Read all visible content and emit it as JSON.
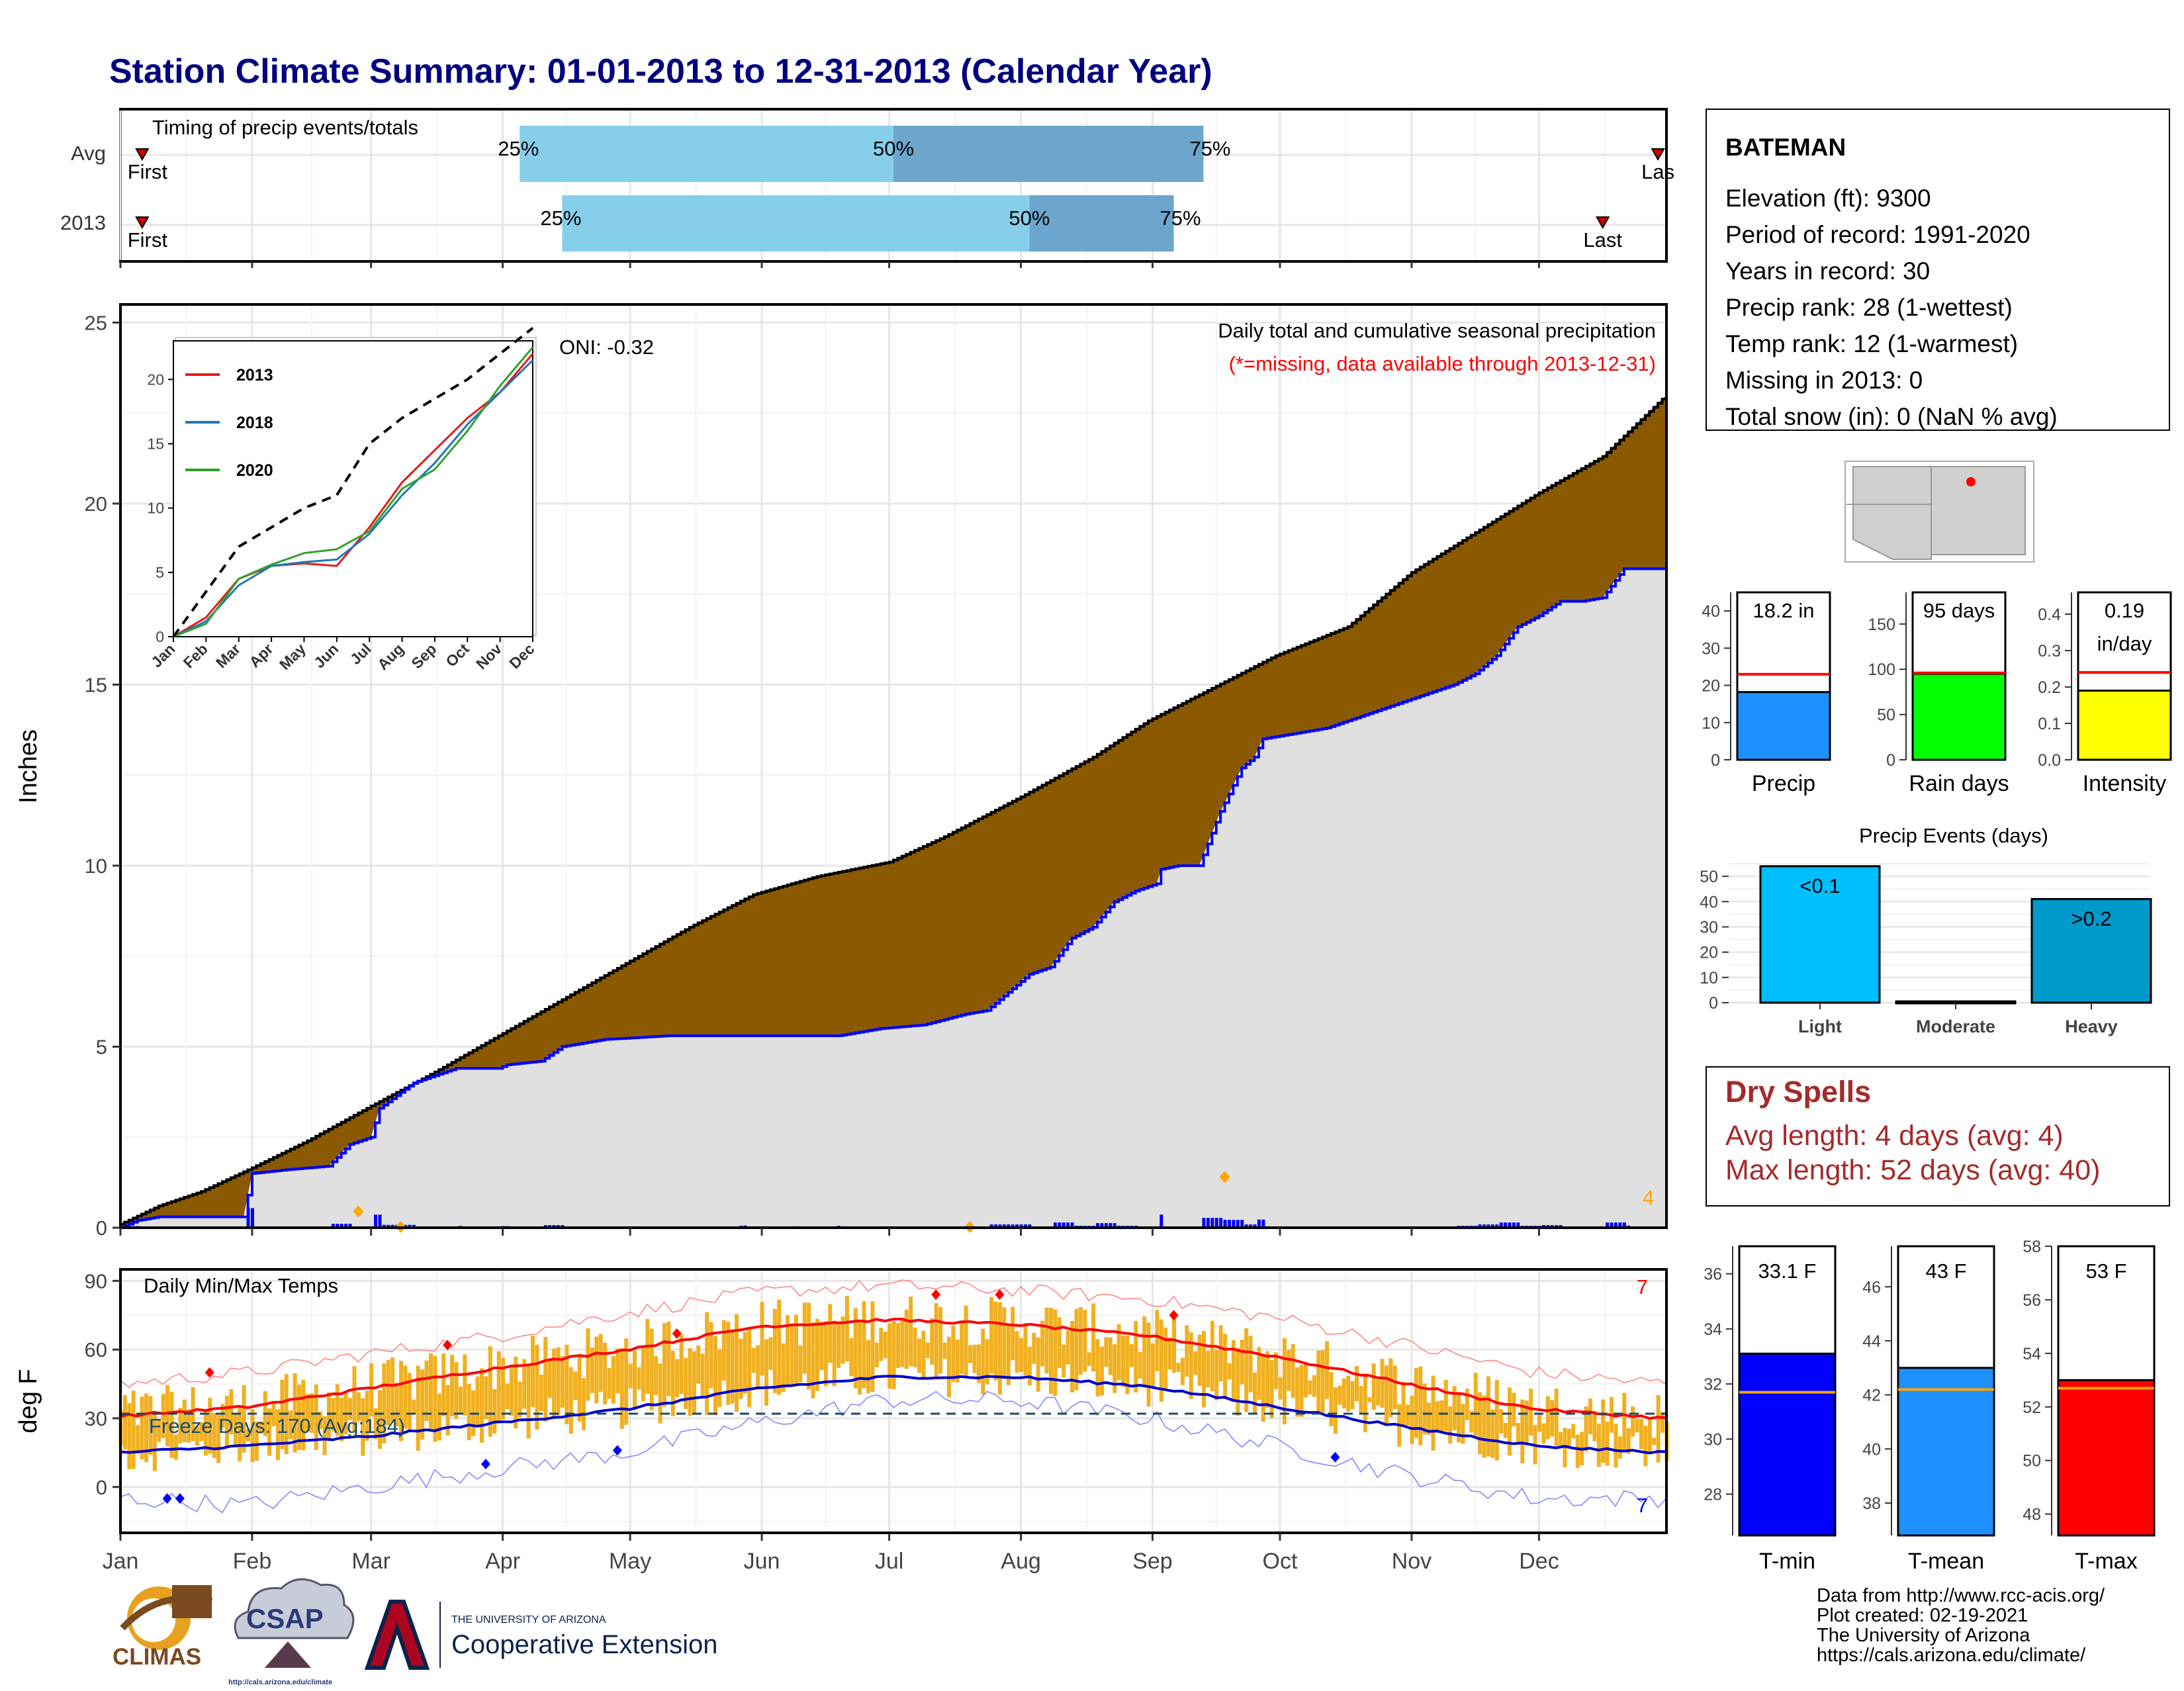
{
  "page": {
    "title": "Station Climate Summary: 01-01-2013 to 12-31-2013 (Calendar Year)",
    "colors": {
      "title": "#000080",
      "precip_fill": "#8B5A00",
      "ytd_fill": "#E0E0E0",
      "line_blue": "#0000FF",
      "temp_bar": "#F0B020",
      "tmax_line": "#FF0000",
      "tmin_line": "#0000CC"
    }
  },
  "months": [
    "Jan",
    "Feb",
    "Mar",
    "Apr",
    "May",
    "Jun",
    "Jul",
    "Aug",
    "Sep",
    "Oct",
    "Nov",
    "Dec"
  ],
  "timing_panel": {
    "title": "Timing of precip events/totals",
    "rows": [
      {
        "label": "Avg",
        "first": "First",
        "last": "Las",
        "q25": "25%",
        "q50": "50%",
        "q75": "75%",
        "p25_day": 95,
        "p50_day": 183,
        "p75_day": 256,
        "first_day": 3,
        "last_day": 363
      },
      {
        "label": "2013",
        "first": "First",
        "last": "Last",
        "q25": "25%",
        "q50": "50%",
        "q75": "75%",
        "p25_day": 105,
        "p50_day": 215,
        "p75_day": 249,
        "first_day": 3,
        "last_day": 350
      }
    ]
  },
  "precip_panel": {
    "title": "Daily total and cumulative seasonal precipitation",
    "subtitle": "(*=missing, data available through 2013-12-31)",
    "ylabel": "Inches",
    "oni": "ONI: -0.32",
    "count": "4",
    "ylim": [
      0,
      25
    ],
    "yticks": [
      "0",
      "5",
      "10",
      "15",
      "20",
      "25"
    ]
  },
  "chart_data": [
    {
      "type": "area",
      "x_unit": "day of year",
      "ylim": [
        0,
        25
      ],
      "series": [
        {
          "kind": "cumulative average precipitation",
          "x": [
            1,
            10,
            20,
            31,
            45,
            59,
            75,
            90,
            105,
            120,
            135,
            150,
            165,
            182,
            195,
            213,
            230,
            243,
            258,
            273,
            290,
            305,
            320,
            335,
            350,
            365
          ],
          "values": [
            0.1,
            0.6,
            1.0,
            1.6,
            2.4,
            3.3,
            4.3,
            5.3,
            6.3,
            7.3,
            8.3,
            9.2,
            9.7,
            10.1,
            10.8,
            11.9,
            13.0,
            14.0,
            14.9,
            15.8,
            16.6,
            18.1,
            19.2,
            20.3,
            21.3,
            23.0
          ]
        },
        {
          "kind": "cumulative 2013 precipitation",
          "x": [
            1,
            5,
            10,
            20,
            30,
            32,
            40,
            50,
            55,
            60,
            62,
            70,
            80,
            90,
            92,
            100,
            105,
            115,
            130,
            150,
            165,
            170,
            180,
            190,
            200,
            205,
            210,
            215,
            220,
            225,
            230,
            235,
            240,
            245,
            246,
            250,
            255,
            260,
            265,
            268,
            270,
            275,
            280,
            285,
            290,
            295,
            300,
            305,
            310,
            315,
            320,
            325,
            330,
            335,
            340,
            345,
            350,
            355,
            365
          ],
          "values": [
            0.0,
            0.2,
            0.3,
            0.3,
            0.3,
            1.5,
            1.6,
            1.7,
            2.3,
            2.5,
            3.3,
            4.0,
            4.4,
            4.4,
            4.5,
            4.6,
            5.0,
            5.2,
            5.3,
            5.3,
            5.3,
            5.3,
            5.5,
            5.6,
            5.9,
            6.0,
            6.5,
            7.0,
            7.2,
            8.0,
            8.3,
            9.0,
            9.3,
            9.5,
            9.9,
            10.0,
            10.0,
            11.5,
            12.7,
            13.0,
            13.5,
            13.6,
            13.7,
            13.8,
            14.0,
            14.2,
            14.4,
            14.6,
            14.8,
            15.0,
            15.3,
            15.8,
            16.6,
            16.9,
            17.3,
            17.3,
            17.4,
            18.2,
            18.2
          ]
        }
      ]
    },
    {
      "type": "line",
      "months": [
        "Jan",
        "Feb",
        "Mar",
        "Apr",
        "May",
        "Jun",
        "Jul",
        "Aug",
        "Sep",
        "Oct",
        "Nov",
        "Dec"
      ],
      "ylim": [
        0,
        23
      ],
      "yticks": [
        "0",
        "5",
        "10",
        "15",
        "20"
      ],
      "series": [
        {
          "name": "2013",
          "color": "#E31A1C",
          "values": [
            0,
            1.5,
            4.5,
            5.5,
            5.7,
            5.5,
            8.5,
            12,
            14.5,
            17,
            19,
            22
          ]
        },
        {
          "name": "2018",
          "color": "#1F78B4",
          "values": [
            0,
            1.2,
            4.0,
            5.5,
            5.8,
            6.0,
            8.0,
            11,
            13.5,
            16.5,
            19,
            21.5
          ]
        },
        {
          "name": "2020",
          "color": "#33A02C",
          "values": [
            0,
            1.0,
            4.5,
            5.6,
            6.5,
            6.8,
            8.2,
            11.5,
            13,
            16,
            19.5,
            22.5
          ]
        },
        {
          "name": "",
          "color": "#000000",
          "dashed": true,
          "values": [
            0,
            3.5,
            7.0,
            8.5,
            10,
            11,
            15,
            17,
            18.5,
            20,
            22,
            24
          ]
        }
      ]
    },
    {
      "type": "line",
      "x_unit": "day of year",
      "ylim": [
        -20,
        95
      ],
      "yticks": [
        "0",
        "30",
        "60",
        "90"
      ],
      "series": [
        {
          "kind": "average max temperature",
          "color": "#FF0000",
          "x": [
            1,
            31,
            59,
            90,
            120,
            151,
            181,
            212,
            243,
            273,
            304,
            334,
            365
          ],
          "values": [
            31,
            35,
            43,
            52,
            60,
            70,
            73,
            71,
            66,
            57,
            45,
            34,
            30
          ]
        },
        {
          "kind": "average min temperature",
          "color": "#0000CC",
          "x": [
            1,
            31,
            59,
            90,
            120,
            151,
            181,
            212,
            243,
            273,
            304,
            334,
            365
          ],
          "values": [
            15,
            18,
            22,
            28,
            34,
            43,
            48,
            48,
            44,
            35,
            26,
            18,
            15
          ]
        },
        {
          "kind": "record max temperature",
          "color": "#FF8080",
          "x": [
            1,
            31,
            59,
            90,
            120,
            151,
            181,
            212,
            243,
            273,
            304,
            334,
            365
          ],
          "values": [
            45,
            50,
            58,
            66,
            76,
            85,
            88,
            86,
            82,
            74,
            62,
            50,
            45
          ]
        },
        {
          "kind": "record min temperature",
          "color": "#8080FF",
          "x": [
            1,
            31,
            59,
            90,
            120,
            151,
            181,
            212,
            243,
            273,
            304,
            334,
            365
          ],
          "values": [
            -5,
            -8,
            0,
            8,
            15,
            28,
            38,
            38,
            30,
            18,
            5,
            -5,
            -5
          ]
        }
      ]
    },
    {
      "type": "bar",
      "title": "Precip Events (days)",
      "categories": [
        "Light",
        "Moderate",
        "Heavy"
      ],
      "labels": [
        "<0.1",
        "",
        ">0.2"
      ],
      "values": [
        54,
        0,
        41
      ],
      "colors": [
        "#00BFFF",
        "#00BFFF",
        "#0099CC"
      ],
      "ylim": [
        0,
        55
      ],
      "yticks": [
        "0",
        "10",
        "20",
        "30",
        "40",
        "50"
      ]
    }
  ],
  "temp_panel": {
    "title": "Daily Min/Max Temps",
    "ylabel": "deg F",
    "freeze": "Freeze Days: 170 (Avg:184)",
    "freeze_line": 32,
    "count_max": "7",
    "count_min": "7"
  },
  "station": {
    "name": "BATEMAN",
    "lines": [
      "Elevation (ft): 9300",
      "Period of record: 1991-2020",
      "Years in record: 30",
      "Precip rank: 28 (1-wettest)",
      "Temp rank: 12 (1-warmest)",
      "Missing in 2013: 0",
      "Total snow (in): 0 (NaN % avg)"
    ]
  },
  "minibars": [
    {
      "label": "Precip",
      "value_text": "18.2 in",
      "value": 18.2,
      "avg": 23,
      "ylim": [
        0,
        45
      ],
      "ticks": [
        "0",
        "10",
        "20",
        "30",
        "40"
      ],
      "tickv": [
        0,
        10,
        20,
        30,
        40
      ],
      "color": "#1E90FF",
      "avg_color": "#FF0000"
    },
    {
      "label": "Rain days",
      "value_text": "95 days",
      "value": 95,
      "avg": 96,
      "ylim": [
        0,
        185
      ],
      "ticks": [
        "0",
        "50",
        "100",
        "150"
      ],
      "tickv": [
        0,
        50,
        100,
        150
      ],
      "color": "#00FF00",
      "avg_color": "#FF0000"
    },
    {
      "label": "Intensity",
      "value_text": "0.19",
      "value_text2": "in/day",
      "value": 0.19,
      "avg": 0.24,
      "ylim": [
        0,
        0.46
      ],
      "ticks": [
        "0.0",
        "0.1",
        "0.2",
        "0.3",
        "0.4"
      ],
      "tickv": [
        0,
        0.1,
        0.2,
        0.3,
        0.4
      ],
      "color": "#FFFF00",
      "avg_color": "#FF0000"
    }
  ],
  "tempbars": [
    {
      "label": "T-min",
      "value_text": "33.1 F",
      "value": 33.1,
      "avg": 31.7,
      "ylim": [
        26.5,
        37
      ],
      "ticks": [
        "28",
        "30",
        "32",
        "34",
        "36"
      ],
      "tickv": [
        28,
        30,
        32,
        34,
        36
      ],
      "color": "#0000FF",
      "avg_color": "#FFA500"
    },
    {
      "label": "T-mean",
      "value_text": "43 F",
      "value": 43.0,
      "avg": 42.2,
      "ylim": [
        36.8,
        47.5
      ],
      "ticks": [
        "38",
        "40",
        "42",
        "44",
        "46"
      ],
      "tickv": [
        38,
        40,
        42,
        44,
        46
      ],
      "color": "#1E90FF",
      "avg_color": "#FFA500"
    },
    {
      "label": "T-max",
      "value_text": "53 F",
      "value": 53.0,
      "avg": 52.7,
      "ylim": [
        47.2,
        58
      ],
      "ticks": [
        "48",
        "50",
        "52",
        "54",
        "56",
        "58"
      ],
      "tickv": [
        48,
        50,
        52,
        54,
        56,
        58
      ],
      "color": "#FF0000",
      "avg_color": "#FFA500"
    }
  ],
  "dry_spells": {
    "title": "Dry Spells",
    "avg": "Avg length: 4 days (avg: 4)",
    "max": "Max length: 52 days (avg: 40)",
    "color": "#A52A2A"
  },
  "footer": {
    "lines": [
      "Data from http://www.rcc-acis.org/",
      "Plot created: 02-19-2021",
      "The University of Arizona",
      "https://cals.arizona.edu/climate/"
    ],
    "logos": {
      "climas": "CLIMAS",
      "csap": "CSAP",
      "csap_url": "http://cals.arizona.edu/climate",
      "ua_small": "THE UNIVERSITY OF ARIZONA",
      "ua_big": "Cooperative Extension"
    }
  }
}
